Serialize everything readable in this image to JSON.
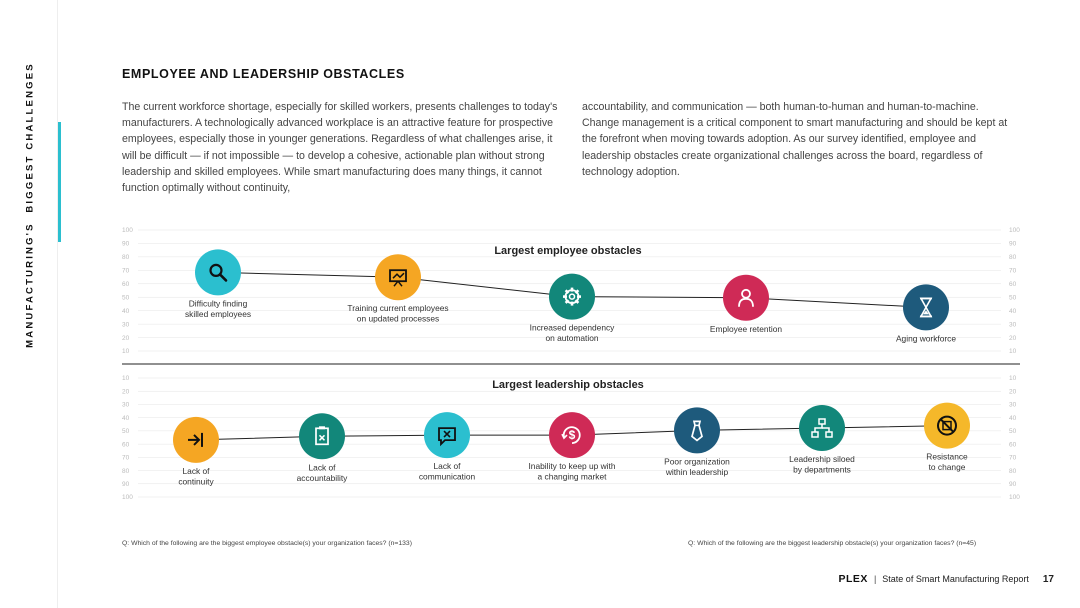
{
  "sidebar": {
    "section_prefix": "MANUFACTURING'S",
    "section_title": "BIGGEST CHALLENGES"
  },
  "heading": "EMPLOYEE AND LEADERSHIP OBSTACLES",
  "intro_left": "The current workforce shortage, especially for skilled workers, presents challenges to today's manufacturers. A technologically advanced workplace is an attractive feature for prospective employees, especially those in younger generations. Regardless of what challenges arise, it will be difficult — if not impossible — to develop a cohesive, actionable plan without strong leadership and skilled employees. While smart manufacturing does many things, it cannot function optimally without continuity,",
  "intro_right": "accountability, and communication — both human-to-human and human-to-machine. Change management is a critical component to smart manufacturing and should be kept at the forefront when moving towards adoption. As our survey identified, employee and leadership obstacles create organizational challenges across the board, regardless of technology adoption.",
  "colors": {
    "teal": "#2bbfcf",
    "orange": "#f5a623",
    "green": "#12877a",
    "crimson": "#cf2a56",
    "navy": "#1e5a7c",
    "amber": "#f5b82a",
    "line": "#222222",
    "grid": "#e4e4e4"
  },
  "chart_data": [
    {
      "type": "line",
      "title": "Largest employee obstacles",
      "ylim": [
        0,
        100
      ],
      "yticks": [
        100,
        90,
        80,
        70,
        60,
        50,
        40,
        30,
        20,
        10
      ],
      "points": [
        {
          "label_lines": [
            "Difficulty finding",
            "skilled employees"
          ],
          "value": 65,
          "icon": "magnifier-icon",
          "color": "#2bbfcf",
          "label_pos": "below"
        },
        {
          "label_lines": [
            "Training current employees",
            "on updated processes"
          ],
          "value": 61,
          "icon": "presentation-board-icon",
          "color": "#f5a623",
          "label_pos": "below"
        },
        {
          "label_lines": [
            "Increased dependency",
            "on automation"
          ],
          "value": 45,
          "icon": "gear-icon",
          "color": "#12877a",
          "label_pos": "below"
        },
        {
          "label_lines": [
            "Employee retention"
          ],
          "value": 44,
          "icon": "person-icon",
          "color": "#cf2a56",
          "label_pos": "below"
        },
        {
          "label_lines": [
            "Aging workforce"
          ],
          "value": 36,
          "icon": "hourglass-icon",
          "color": "#1e5a7c",
          "label_pos": "below"
        }
      ]
    },
    {
      "type": "line",
      "title": "Largest leadership obstacles",
      "ylim": [
        0,
        100
      ],
      "inverted": true,
      "yticks": [
        10,
        20,
        30,
        40,
        50,
        60,
        70,
        80,
        90,
        100
      ],
      "points": [
        {
          "label_lines": [
            "Lack of",
            "continuity"
          ],
          "value": 52,
          "icon": "arrow-bar-icon",
          "color": "#f5a623",
          "label_pos": "below"
        },
        {
          "label_lines": [
            "Lack of",
            "accountability"
          ],
          "value": 49,
          "icon": "clipboard-icon",
          "color": "#12877a",
          "label_pos": "below"
        },
        {
          "label_lines": [
            "Lack of",
            "communication"
          ],
          "value": 48,
          "icon": "message-x-icon",
          "color": "#2bbfcf",
          "label_pos": "below"
        },
        {
          "label_lines": [
            "Inability to keep up with",
            "a changing market"
          ],
          "value": 48,
          "icon": "dollar-cycle-icon",
          "color": "#cf2a56",
          "label_pos": "below"
        },
        {
          "label_lines": [
            "Poor organization",
            "within leadership"
          ],
          "value": 44,
          "icon": "necktie-icon",
          "color": "#1e5a7c",
          "label_pos": "below"
        },
        {
          "label_lines": [
            "Leadership siloed",
            "by departments"
          ],
          "value": 42,
          "icon": "org-chart-icon",
          "color": "#12877a",
          "label_pos": "below"
        },
        {
          "label_lines": [
            "Resistance",
            "to change"
          ],
          "value": 40,
          "icon": "no-change-icon",
          "color": "#f5b82a",
          "label_pos": "below"
        }
      ]
    }
  ],
  "question_employee": "Q: Which of the following are the biggest employee obstacle(s) your organization faces? (n=133)",
  "question_leadership": "Q: Which of the following are the biggest leadership obstacle(s) your organization faces? (n=45)",
  "footer": {
    "logo": "PLEX",
    "separator": "|",
    "report_title": "State of Smart Manufacturing Report",
    "page_number": "17"
  }
}
